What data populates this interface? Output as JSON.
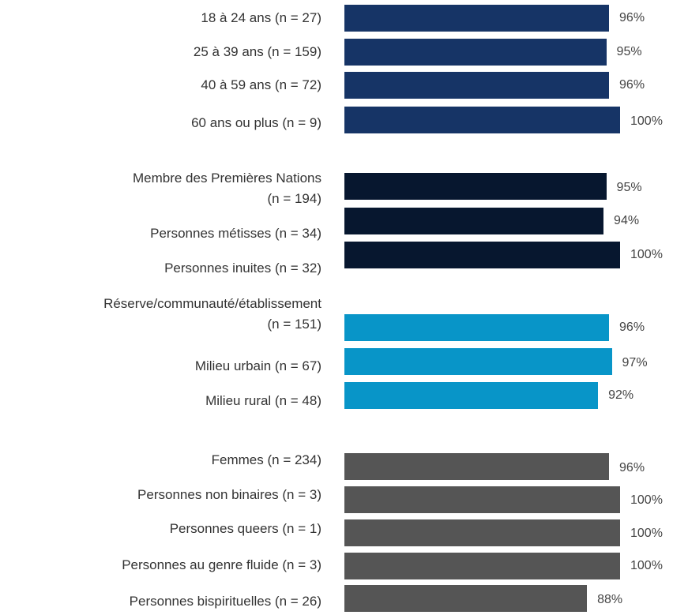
{
  "chart_data": {
    "type": "hbar",
    "categories": [
      "18 à 24 ans (n = 27)",
      "25 à 39 ans (n = 159)",
      "40 à 59 ans (n = 72)",
      "60 ans ou plus (n = 9)",
      "Membre des Premières Nations\n(n = 194)",
      "Personnes métisses (n = 34)",
      "Personnes inuites (n = 32)",
      "Réserve/communauté/établissement\n(n = 151)",
      "Milieu urbain (n = 67)",
      "Milieu rural (n = 48)",
      "Femmes (n = 234)",
      "Personnes non binaires (n = 3)",
      "Personnes queers (n = 1)",
      "Personnes au genre fluide (n = 3)",
      "Personnes bispirituelles (n = 26)"
    ],
    "values": [
      96,
      95,
      96,
      100,
      95,
      94,
      100,
      96,
      97,
      92,
      96,
      100,
      100,
      100,
      88
    ],
    "value_labels": [
      "96%",
      "95%",
      "96%",
      "100%",
      "95%",
      "94%",
      "100%",
      "96%",
      "97%",
      "92%",
      "96%",
      "100%",
      "100%",
      "100%",
      "88%"
    ],
    "colors": [
      "#163466",
      "#163466",
      "#163466",
      "#163466",
      "#07172f",
      "#07172f",
      "#07172f",
      "#0895c8",
      "#0895c8",
      "#0895c8",
      "#555555",
      "#555555",
      "#555555",
      "#555555",
      "#555555"
    ],
    "xlim": [
      0,
      100
    ]
  }
}
